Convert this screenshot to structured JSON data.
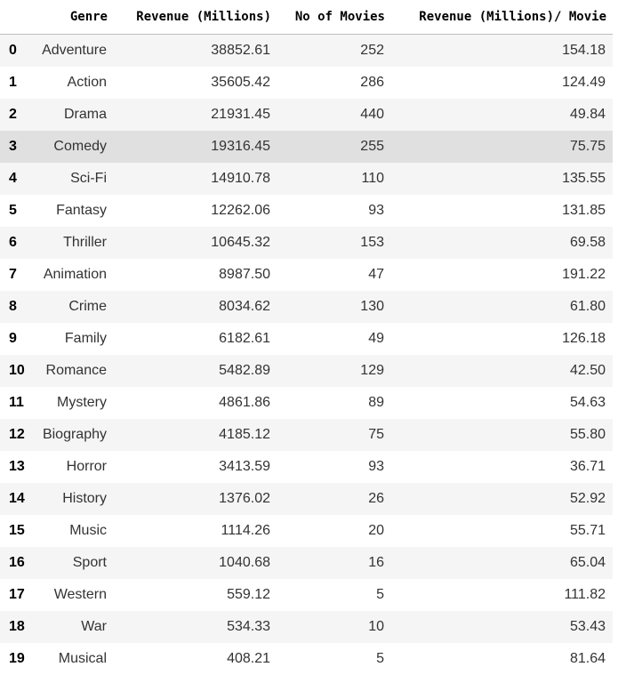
{
  "table": {
    "columns": [
      "",
      "Genre",
      "Revenue (Millions)",
      "No of Movies",
      "Revenue (Millions)/ Movie"
    ],
    "rows": [
      {
        "index": "0",
        "genre": "Adventure",
        "revenue": "38852.61",
        "movies": "252",
        "ratio": "154.18"
      },
      {
        "index": "1",
        "genre": "Action",
        "revenue": "35605.42",
        "movies": "286",
        "ratio": "124.49"
      },
      {
        "index": "2",
        "genre": "Drama",
        "revenue": "21931.45",
        "movies": "440",
        "ratio": "49.84"
      },
      {
        "index": "3",
        "genre": "Comedy",
        "revenue": "19316.45",
        "movies": "255",
        "ratio": "75.75"
      },
      {
        "index": "4",
        "genre": "Sci-Fi",
        "revenue": "14910.78",
        "movies": "110",
        "ratio": "135.55"
      },
      {
        "index": "5",
        "genre": "Fantasy",
        "revenue": "12262.06",
        "movies": "93",
        "ratio": "131.85"
      },
      {
        "index": "6",
        "genre": "Thriller",
        "revenue": "10645.32",
        "movies": "153",
        "ratio": "69.58"
      },
      {
        "index": "7",
        "genre": "Animation",
        "revenue": "8987.50",
        "movies": "47",
        "ratio": "191.22"
      },
      {
        "index": "8",
        "genre": "Crime",
        "revenue": "8034.62",
        "movies": "130",
        "ratio": "61.80"
      },
      {
        "index": "9",
        "genre": "Family",
        "revenue": "6182.61",
        "movies": "49",
        "ratio": "126.18"
      },
      {
        "index": "10",
        "genre": "Romance",
        "revenue": "5482.89",
        "movies": "129",
        "ratio": "42.50"
      },
      {
        "index": "11",
        "genre": "Mystery",
        "revenue": "4861.86",
        "movies": "89",
        "ratio": "54.63"
      },
      {
        "index": "12",
        "genre": "Biography",
        "revenue": "4185.12",
        "movies": "75",
        "ratio": "55.80"
      },
      {
        "index": "13",
        "genre": "Horror",
        "revenue": "3413.59",
        "movies": "93",
        "ratio": "36.71"
      },
      {
        "index": "14",
        "genre": "History",
        "revenue": "1376.02",
        "movies": "26",
        "ratio": "52.92"
      },
      {
        "index": "15",
        "genre": "Music",
        "revenue": "1114.26",
        "movies": "20",
        "ratio": "55.71"
      },
      {
        "index": "16",
        "genre": "Sport",
        "revenue": "1040.68",
        "movies": "16",
        "ratio": "65.04"
      },
      {
        "index": "17",
        "genre": "Western",
        "revenue": "559.12",
        "movies": "5",
        "ratio": "111.82"
      },
      {
        "index": "18",
        "genre": "War",
        "revenue": "534.33",
        "movies": "10",
        "ratio": "53.43"
      },
      {
        "index": "19",
        "genre": "Musical",
        "revenue": "408.21",
        "movies": "5",
        "ratio": "81.64"
      }
    ],
    "hovered_row": "3",
    "colors": {
      "row_stripe": "#f5f5f5",
      "row_hover": "#e0e0e0",
      "header_border": "#bdbdbd"
    }
  }
}
